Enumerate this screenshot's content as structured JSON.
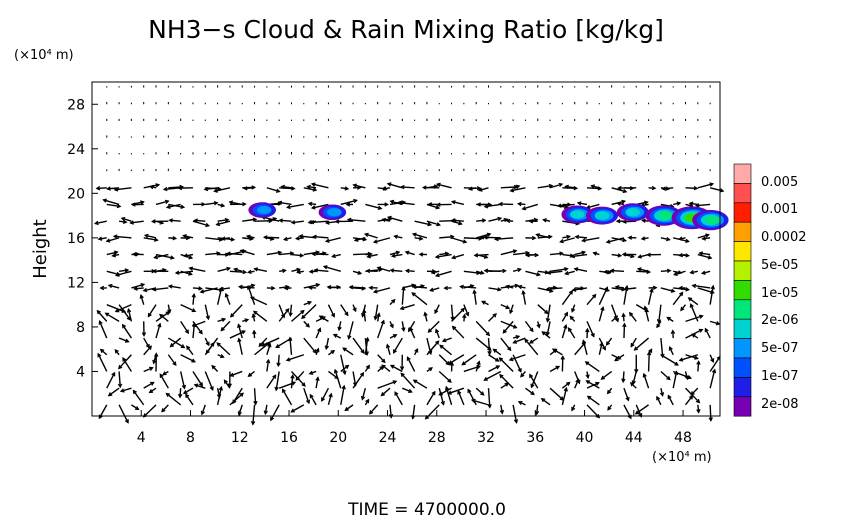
{
  "chart_data": {
    "type": "heatmap",
    "title": "NH3−s Cloud & Rain Mixing Ratio [kg/kg]",
    "y_unit": "(×10⁴ m)",
    "x_unit": "(×10⁴ m)",
    "ylabel": "Height",
    "xlabel": "",
    "footer": "TIME  =  4700000.0",
    "xlim": [
      0,
      51
    ],
    "ylim": [
      0,
      30
    ],
    "x_ticks": [
      4,
      8,
      12,
      16,
      20,
      24,
      28,
      32,
      36,
      40,
      44,
      48
    ],
    "y_ticks": [
      4,
      8,
      12,
      16,
      20,
      24,
      28
    ],
    "colorbar": {
      "labels": [
        "0.005",
        "0.001",
        "0.0002",
        "5e-05",
        "1e-05",
        "2e-06",
        "5e-07",
        "1e-07",
        "2e-08"
      ],
      "colors": [
        "#ffaaaa",
        "#ff5050",
        "#ff1e00",
        "#ffa000",
        "#ffe600",
        "#b4f000",
        "#32dc00",
        "#00e678",
        "#00d2d2",
        "#0096ff",
        "#0050ff",
        "#1e1ee6",
        "#7800b4"
      ]
    },
    "cloud_patches": [
      {
        "x": 13.9,
        "y": 18.5,
        "level": 9
      },
      {
        "x": 19.6,
        "y": 18.3,
        "level": 9
      },
      {
        "x": 39.5,
        "y": 18.1,
        "level": 8
      },
      {
        "x": 41.5,
        "y": 18.0,
        "level": 8
      },
      {
        "x": 44.0,
        "y": 18.3,
        "level": 8
      },
      {
        "x": 46.5,
        "y": 18.0,
        "level": 7
      },
      {
        "x": 48.8,
        "y": 17.8,
        "level": 6
      },
      {
        "x": 50.3,
        "y": 17.6,
        "level": 7
      }
    ]
  }
}
